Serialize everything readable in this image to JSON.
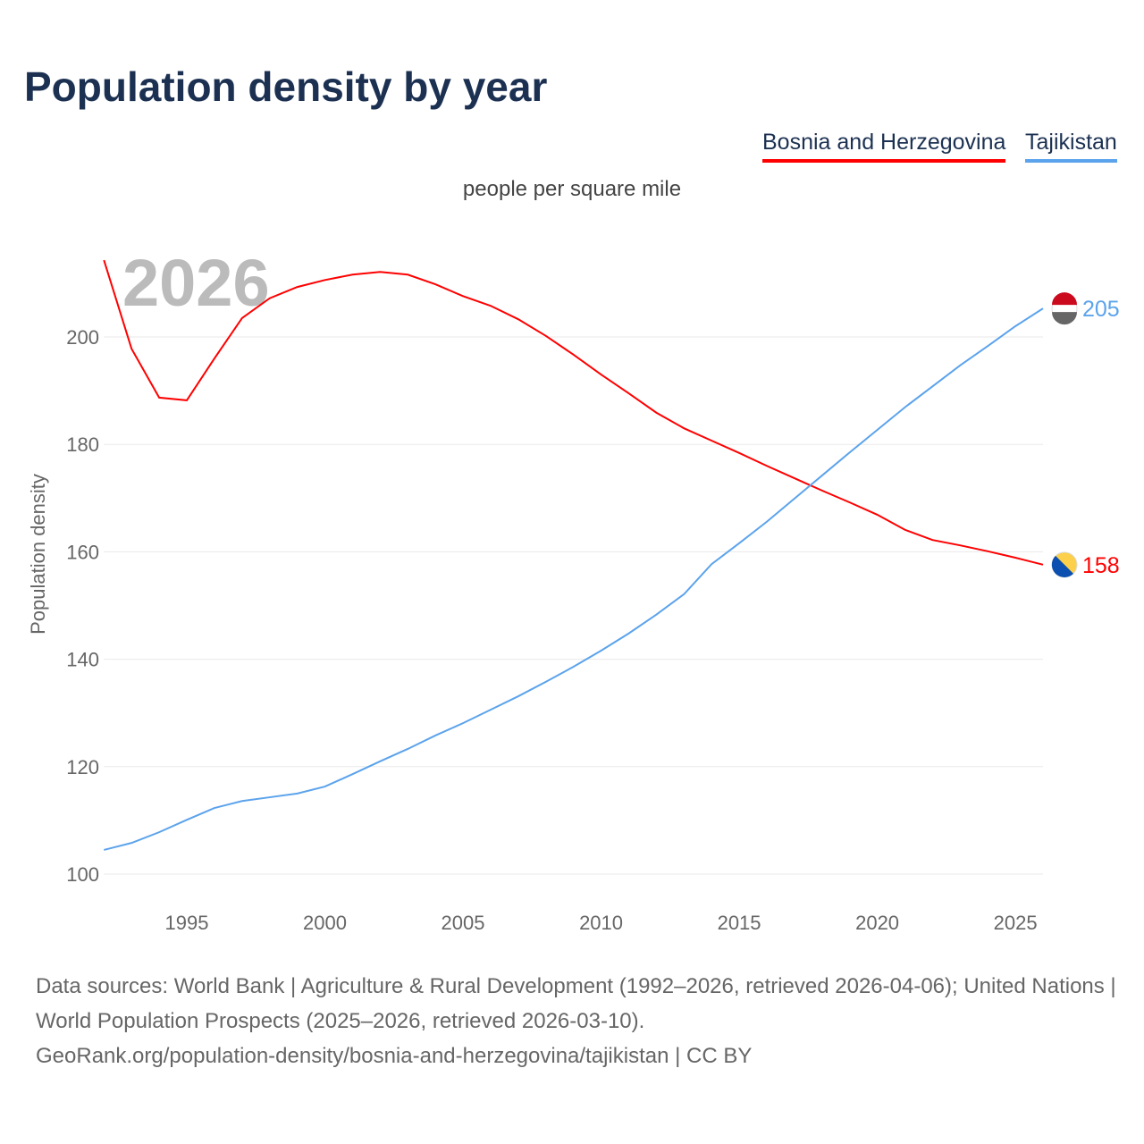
{
  "title": "Population density by year",
  "legend": [
    {
      "name": "Bosnia and Herzegovina",
      "color": "#ff0000"
    },
    {
      "name": "Tajikistan",
      "color": "#5ba3ec"
    }
  ],
  "unit_label": "people per square mile",
  "footer": {
    "line1": "Data sources: World Bank | Agriculture & Rural Development (1992–2026, retrieved 2026-04-06); United Nations | World Population Prospects (2025–2026, retrieved 2026-03-10).",
    "line2": "GeoRank.org/population-density/bosnia-and-herzegovina/tajikistan | CC BY"
  },
  "chart_data": {
    "type": "line",
    "title": "Population density by year",
    "ylabel": "Population density",
    "xlabel": "",
    "year_watermark": "2026",
    "xlim": [
      1992,
      2026
    ],
    "ylim": [
      100,
      215
    ],
    "xticks": [
      1995,
      2000,
      2005,
      2010,
      2015,
      2020,
      2025
    ],
    "yticks": [
      100,
      120,
      140,
      160,
      180,
      200
    ],
    "grid": true,
    "legend_position": "top-right",
    "x": [
      1992,
      1993,
      1994,
      1995,
      1996,
      1997,
      1998,
      1999,
      2000,
      2001,
      2002,
      2003,
      2004,
      2005,
      2006,
      2007,
      2008,
      2009,
      2010,
      2011,
      2012,
      2013,
      2014,
      2015,
      2016,
      2017,
      2018,
      2019,
      2020,
      2021,
      2022,
      2023,
      2024,
      2025,
      2026
    ],
    "series": [
      {
        "name": "Bosnia and Herzegovina",
        "color": "#ff0000",
        "end_label": "158",
        "values": [
          214.3,
          197.8,
          188.7,
          188.2,
          196,
          203.5,
          207.2,
          209.3,
          210.6,
          211.6,
          212.1,
          211.6,
          209.8,
          207.6,
          205.8,
          203.3,
          200.2,
          196.7,
          193,
          189.5,
          185.9,
          183,
          180.7,
          178.4,
          176,
          173.7,
          171.4,
          169.2,
          166.9,
          164.1,
          162.2,
          161.2,
          160.1,
          158.9,
          157.6
        ]
      },
      {
        "name": "Tajikistan",
        "color": "#5ba3ec",
        "end_label": "205",
        "values": [
          104.5,
          105.8,
          107.8,
          110.1,
          112.3,
          113.6,
          114.3,
          115,
          116.3,
          118.6,
          121,
          123.3,
          125.8,
          128.1,
          130.6,
          133.1,
          135.8,
          138.6,
          141.6,
          144.8,
          148.3,
          152.1,
          157.7,
          161.6,
          165.6,
          169.9,
          174.2,
          178.5,
          182.7,
          186.9,
          190.8,
          194.7,
          198.3,
          202,
          205.3
        ]
      }
    ]
  }
}
